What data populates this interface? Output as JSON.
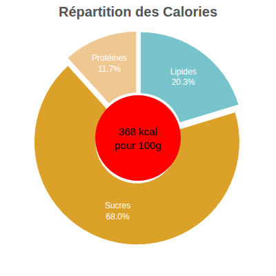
{
  "chart_data": {
    "type": "pie",
    "title": "Répartition des Calories",
    "categories": [
      "Lipides",
      "Sucres",
      "Protéines"
    ],
    "values": [
      20.3,
      68.0,
      11.7
    ],
    "value_labels": [
      "20.3%",
      "68.0%",
      "11.7%"
    ],
    "colors": [
      "#77c4cc",
      "#dca128",
      "#efc891"
    ],
    "data_labels": true,
    "annotations": [
      "368 kcal",
      "pour 100g"
    ]
  }
}
